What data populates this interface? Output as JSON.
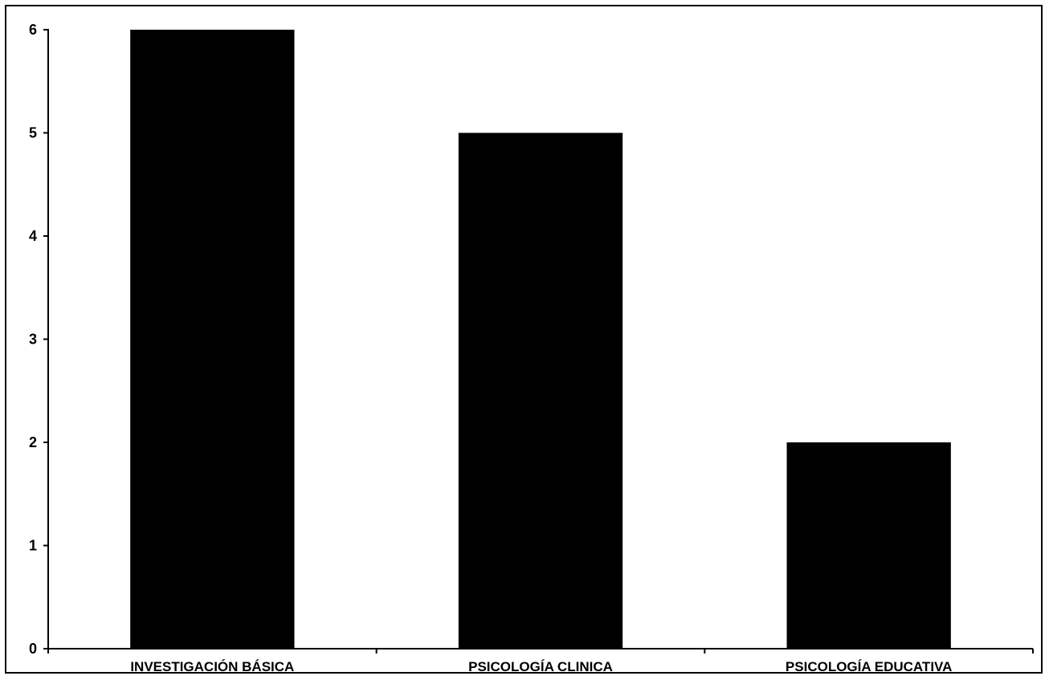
{
  "chart_data": {
    "type": "bar",
    "title": "",
    "xlabel": "",
    "ylabel": "",
    "categories": [
      "INVESTIGACIÓN BÁSICA",
      "PSICOLOGÍA CLINICA",
      "PSICOLOGÍA EDUCATIVA"
    ],
    "values": [
      6,
      5,
      2
    ],
    "ylim": [
      0,
      6
    ],
    "yticks": [
      "0",
      "1",
      "2",
      "3",
      "4",
      "5",
      "6"
    ],
    "grid": false,
    "legend": "none",
    "bar_color": "#000000"
  }
}
